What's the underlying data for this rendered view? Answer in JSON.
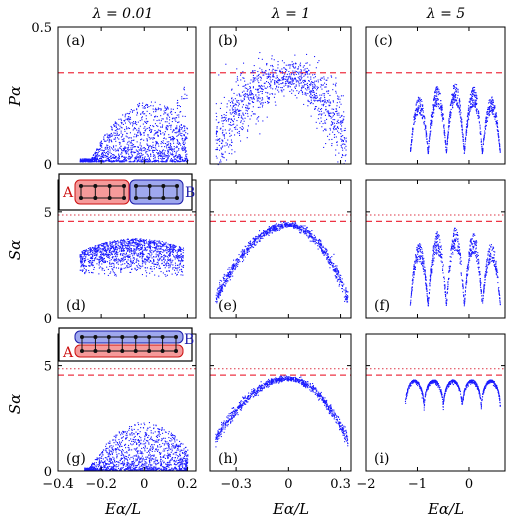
{
  "figure": {
    "column_titles": [
      "λ = 0.01",
      "λ = 1",
      "λ = 5"
    ],
    "row_ylabels": [
      "Pα",
      "Sα",
      "Sα"
    ],
    "xlabel": "Eα/L",
    "inset_labels": {
      "a": "A",
      "b": "B"
    }
  },
  "colors": {
    "scatter": "#1a1aff",
    "reference_dashed": "#ee3344",
    "reference_dotted": "#dd3344",
    "inset_a_fill": "#f59a9a",
    "inset_b_fill": "#9fa8ee"
  },
  "chart_data": [
    {
      "type": "scatter",
      "panel": "(a)",
      "row": 0,
      "col": 0,
      "title": "λ = 0.01",
      "ylabel": "Pα",
      "ylim": [
        0,
        0.5
      ],
      "yticks": [
        0,
        0.5
      ],
      "ytick_labels": [
        "0",
        "0.5"
      ],
      "xlim": [
        -0.4,
        0.24
      ],
      "xticks": [
        -0.4,
        -0.2,
        0,
        0.2
      ],
      "xtick_labels": [],
      "reference_lines": [
        {
          "y": 0.333,
          "style": "dashed"
        }
      ],
      "cloud": {
        "shape": "mound",
        "x_range": [
          -0.3,
          0.2
        ],
        "peak_x": 0.02,
        "y_base": 0.01,
        "y_spread": 0.22,
        "tail_up_right": true,
        "count": 1400
      }
    },
    {
      "type": "scatter",
      "panel": "(b)",
      "row": 0,
      "col": 1,
      "title": "λ = 1",
      "ylabel": "",
      "ylim": [
        0,
        0.5
      ],
      "yticks": [
        0,
        0.5
      ],
      "ytick_labels": [],
      "xlim": [
        -0.45,
        0.36
      ],
      "xticks": [
        -0.3,
        0,
        0.3
      ],
      "xtick_labels": [],
      "reference_lines": [
        {
          "y": 0.333,
          "style": "dashed"
        }
      ],
      "cloud": {
        "shape": "arch",
        "x_range": [
          -0.42,
          0.33
        ],
        "peak_x": 0,
        "peak_y": 0.32,
        "end_y": 0.07,
        "thickness": 0.05,
        "count": 1100
      }
    },
    {
      "type": "scatter",
      "panel": "(c)",
      "row": 0,
      "col": 2,
      "title": "λ = 5",
      "ylabel": "",
      "ylim": [
        0,
        0.5
      ],
      "yticks": [
        0,
        0.5
      ],
      "ytick_labels": [],
      "xlim": [
        -2.0,
        0.7
      ],
      "xticks": [
        -2,
        -1,
        0
      ],
      "xtick_labels": [],
      "reference_lines": [
        {
          "y": 0.333,
          "style": "dashed"
        }
      ],
      "cloud": {
        "shape": "humps",
        "x_range": [
          -1.15,
          0.6
        ],
        "n_humps": 5,
        "peak_y": 0.3,
        "end_y": 0.04,
        "count": 1000
      }
    },
    {
      "type": "scatter",
      "panel": "(d)",
      "row": 1,
      "col": 0,
      "title": "",
      "ylabel": "Sα",
      "ylim": [
        0,
        6.5
      ],
      "yticks": [
        0,
        5
      ],
      "ytick_labels": [
        "0",
        "5"
      ],
      "xlim": [
        -0.4,
        0.24
      ],
      "xticks": [
        -0.4,
        -0.2,
        0,
        0.2
      ],
      "xtick_labels": [],
      "reference_lines": [
        {
          "y": 4.55,
          "style": "dashed"
        },
        {
          "y": 4.85,
          "style": "dotted"
        }
      ],
      "inset": "ladder-split",
      "cloud": {
        "shape": "blob",
        "x_range": [
          -0.3,
          0.18
        ],
        "center_x": -0.04,
        "center_y": 3.0,
        "y_spread": 1.4,
        "count": 1300
      }
    },
    {
      "type": "scatter",
      "panel": "(e)",
      "row": 1,
      "col": 1,
      "title": "",
      "ylabel": "",
      "ylim": [
        0,
        6.5
      ],
      "yticks": [
        0,
        5
      ],
      "ytick_labels": [],
      "xlim": [
        -0.45,
        0.36
      ],
      "xticks": [
        -0.3,
        0,
        0.3
      ],
      "xtick_labels": [],
      "reference_lines": [
        {
          "y": 4.55,
          "style": "dashed"
        },
        {
          "y": 4.85,
          "style": "dotted"
        }
      ],
      "cloud": {
        "shape": "arch",
        "x_range": [
          -0.42,
          0.34
        ],
        "peak_x": 0,
        "peak_y": 4.4,
        "end_y": 0.9,
        "thickness": 0.12,
        "count": 900
      }
    },
    {
      "type": "scatter",
      "panel": "(f)",
      "row": 1,
      "col": 2,
      "title": "",
      "ylabel": "",
      "ylim": [
        0,
        6.5
      ],
      "yticks": [
        0,
        5
      ],
      "ytick_labels": [],
      "xlim": [
        -2.0,
        0.7
      ],
      "xticks": [
        -2,
        -1,
        0
      ],
      "xtick_labels": [],
      "reference_lines": [
        {
          "y": 4.55,
          "style": "dashed"
        },
        {
          "y": 4.85,
          "style": "dotted"
        }
      ],
      "cloud": {
        "shape": "humps",
        "x_range": [
          -1.15,
          0.6
        ],
        "n_humps": 5,
        "peak_y": 4.3,
        "end_y": 0.6,
        "count": 900
      }
    },
    {
      "type": "scatter",
      "panel": "(g)",
      "row": 2,
      "col": 0,
      "title": "",
      "ylabel": "Sα",
      "ylim": [
        0,
        6.5
      ],
      "yticks": [
        0,
        5
      ],
      "ytick_labels": [
        "0",
        "5"
      ],
      "xlim": [
        -0.4,
        0.24
      ],
      "xticks": [
        -0.4,
        -0.2,
        0,
        0.2
      ],
      "xtick_labels": [
        "−0.4",
        "−0.2",
        "0",
        "0.2"
      ],
      "xlabel": "Eα/L",
      "reference_lines": [
        {
          "y": 4.55,
          "style": "dashed"
        },
        {
          "y": 4.85,
          "style": "dotted"
        }
      ],
      "inset": "ladder-parallel",
      "cloud": {
        "shape": "mound",
        "x_range": [
          -0.28,
          0.2
        ],
        "peak_x": 0.0,
        "y_base": 0.05,
        "y_spread": 2.3,
        "tail_up_right": false,
        "count": 1300
      }
    },
    {
      "type": "scatter",
      "panel": "(h)",
      "row": 2,
      "col": 1,
      "title": "",
      "ylabel": "",
      "ylim": [
        0,
        6.5
      ],
      "yticks": [
        0,
        5
      ],
      "ytick_labels": [],
      "xlim": [
        -0.45,
        0.36
      ],
      "xticks": [
        -0.3,
        0,
        0.3
      ],
      "xtick_labels": [
        "−0.3",
        "0",
        "0.3"
      ],
      "xlabel": "Eα/L",
      "reference_lines": [
        {
          "y": 4.55,
          "style": "dashed"
        },
        {
          "y": 4.85,
          "style": "dotted"
        }
      ],
      "cloud": {
        "shape": "arch",
        "x_range": [
          -0.42,
          0.34
        ],
        "peak_x": 0,
        "peak_y": 4.4,
        "end_y": 1.5,
        "thickness": 0.1,
        "count": 900
      }
    },
    {
      "type": "scatter",
      "panel": "(i)",
      "row": 2,
      "col": 2,
      "title": "",
      "ylabel": "",
      "ylim": [
        0,
        6.5
      ],
      "yticks": [
        0,
        5
      ],
      "ytick_labels": [],
      "xlim": [
        -2.0,
        0.7
      ],
      "xticks": [
        -2,
        -1,
        0
      ],
      "xtick_labels": [
        "−2",
        "−1",
        "0"
      ],
      "xlabel": "Eα/L",
      "reference_lines": [
        {
          "y": 4.55,
          "style": "dashed"
        },
        {
          "y": 4.85,
          "style": "dotted"
        }
      ],
      "cloud": {
        "shape": "scallops",
        "x_range": [
          -1.25,
          0.6
        ],
        "n_humps": 5,
        "peak_y": 4.35,
        "valley_y": 3.0,
        "count": 900
      }
    }
  ]
}
